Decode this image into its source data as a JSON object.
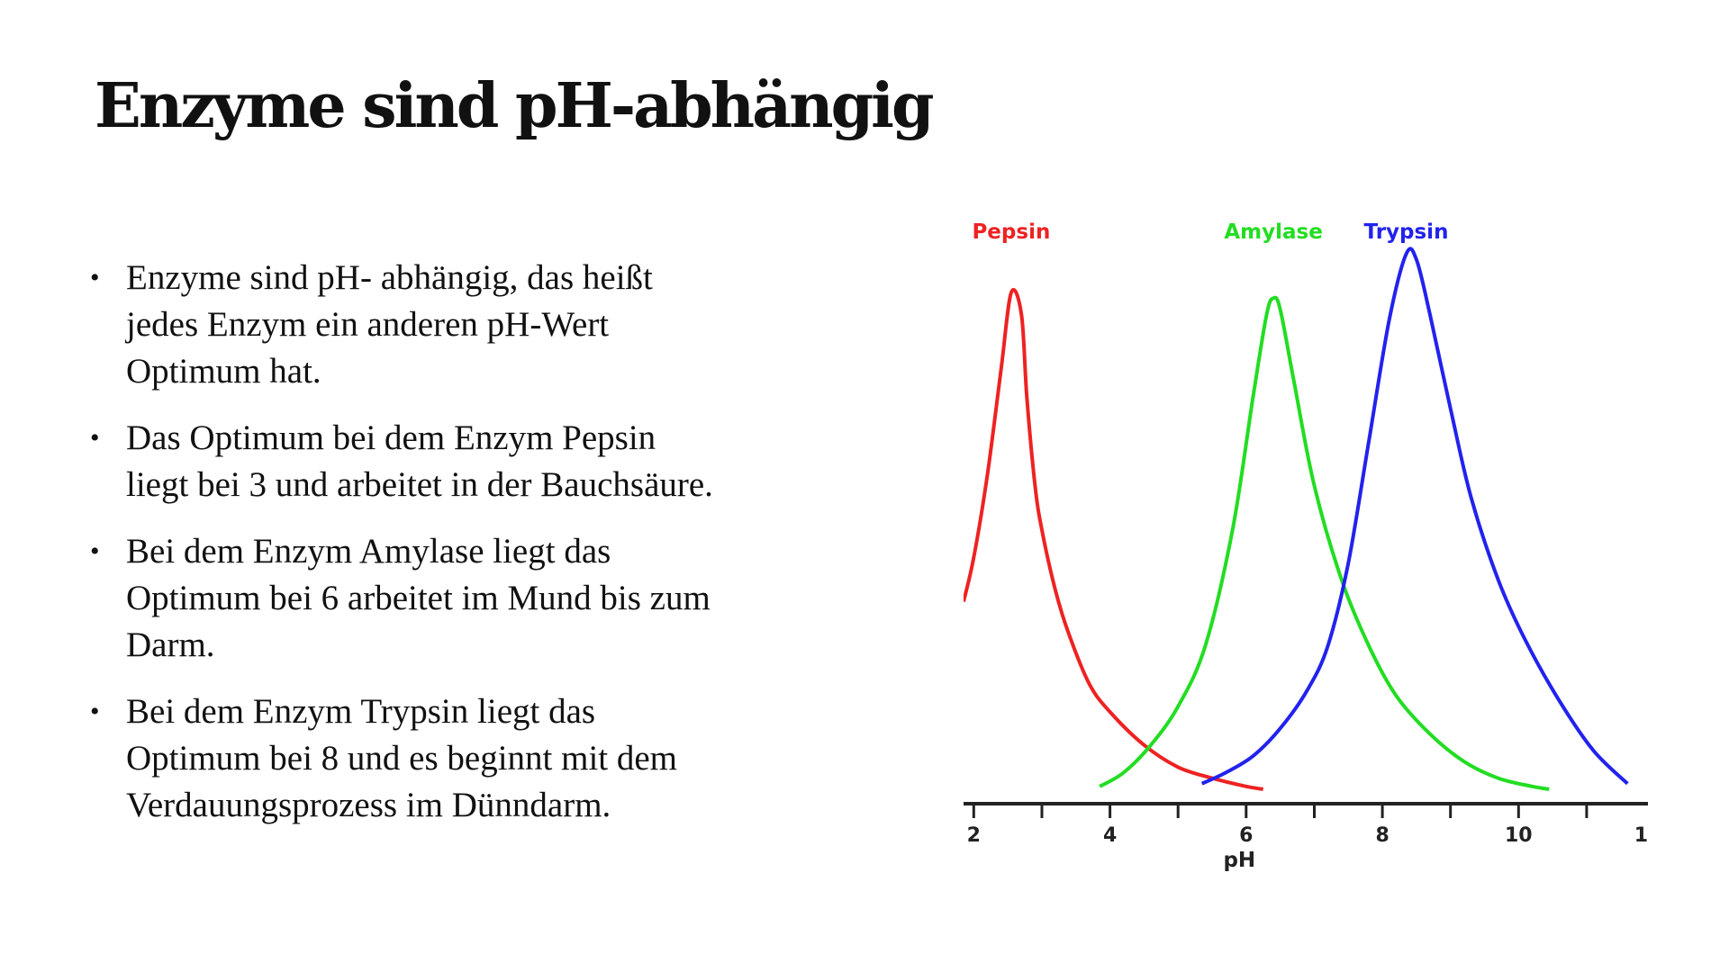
{
  "slide": {
    "title": "Enzyme sind pH-abhängig",
    "bullets": [
      {
        "text": "Enzyme sind pH- abhängig, das heißt\njedes Enzym ein anderen pH-Wert\nOptimum hat."
      },
      {
        "text": "Das Optimum bei dem Enzym Pepsin\nliegt bei 3 und arbeitet in der Bauchsäure."
      },
      {
        "text": " Bei dem Enzym Amylase liegt das\nOptimum bei 6 arbeitet im Mund bis zum\nDarm."
      },
      {
        "text": "Bei dem Enzym Trypsin liegt das\nOptimum bei 8 und es beginnt mit dem\nVerdauungsprozess im Dünndarm."
      }
    ],
    "bullet_symbol": "•"
  },
  "chart_data": {
    "type": "line",
    "xlabel": "pH",
    "ylabel": "",
    "xlim": [
      1.85,
      11.9
    ],
    "ylim": [
      0,
      100
    ],
    "x_ticks": [
      2,
      3,
      4,
      5,
      6,
      7,
      8,
      9,
      10,
      11
    ],
    "x_tick_labels": [
      {
        "value": 2,
        "label": "2"
      },
      {
        "value": 4,
        "label": "4"
      },
      {
        "value": 6,
        "label": "6"
      },
      {
        "value": 8,
        "label": "8"
      },
      {
        "value": 10,
        "label": "10"
      },
      {
        "value": 11.8,
        "label": "1"
      }
    ],
    "grid": false,
    "legend": "top, labels above curves",
    "series": [
      {
        "name": "Pepsin",
        "color": "#ee2222",
        "x": [
          1.85,
          2.0,
          2.2,
          2.4,
          2.55,
          2.7,
          2.78,
          2.9,
          3.0,
          3.2,
          3.4,
          3.7,
          4.0,
          4.5,
          5.0,
          5.5,
          6.0,
          6.25
        ],
        "y": [
          35,
          43,
          58,
          77,
          91,
          87,
          72,
          56,
          48,
          37,
          29,
          20,
          15,
          9,
          5,
          3,
          1.5,
          1
        ]
      },
      {
        "name": "Amylase",
        "color": "#22dd22",
        "x": [
          3.85,
          4.2,
          4.6,
          5.0,
          5.4,
          5.8,
          6.1,
          6.3,
          6.4,
          6.5,
          6.7,
          7.0,
          7.4,
          7.8,
          8.2,
          8.7,
          9.2,
          9.7,
          10.2,
          10.45
        ],
        "y": [
          1.5,
          4,
          9,
          16,
          27,
          48,
          72,
          87,
          90,
          88,
          75,
          56,
          39,
          27,
          18,
          11,
          6,
          3,
          1.5,
          1
        ]
      },
      {
        "name": "Trypsin",
        "color": "#2222ee",
        "x": [
          5.35,
          5.7,
          6.1,
          6.5,
          6.9,
          7.2,
          7.5,
          7.8,
          8.1,
          8.35,
          8.5,
          8.7,
          9.0,
          9.3,
          9.7,
          10.1,
          10.6,
          11.1,
          11.6
        ],
        "y": [
          2,
          4,
          7,
          12,
          19,
          27,
          42,
          64,
          86,
          98,
          97,
          87,
          70,
          54,
          39,
          28,
          17,
          8,
          2
        ]
      }
    ]
  }
}
